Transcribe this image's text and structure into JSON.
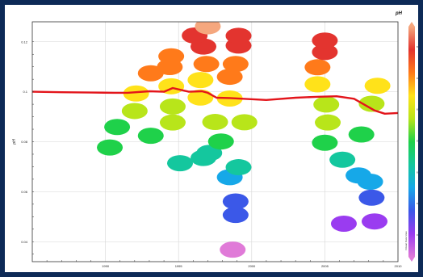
{
  "chart_data": {
    "type": "scatter",
    "title": "",
    "xlabel": "",
    "ylabel": "pH",
    "xlim": [
      1985,
      2010
    ],
    "ylim": [
      0.032,
      0.128
    ],
    "x_ticks": [
      "1990",
      "1995",
      "2000",
      "2005",
      "2010"
    ],
    "y_ticks": [
      "0.12",
      "0.1",
      "0.08",
      "0.06",
      "0.04"
    ],
    "grid": true,
    "colorbar": {
      "label": "pH",
      "ticks": [
        "8.",
        "8.",
        "8.",
        "8.",
        "8.",
        "8.",
        "8."
      ],
      "side_text": "Ocean Data View",
      "colors": [
        "#f5a77e",
        "#e3342f",
        "#ff7a1a",
        "#ffe21a",
        "#b8e51a",
        "#1fd14a",
        "#14c79e",
        "#16a8e8",
        "#3b58e8",
        "#9a3cf0",
        "#e07ad8"
      ]
    },
    "series": [
      {
        "values": [
          {
            "x": 1997.0,
            "y": 0.1262
          },
          {
            "x": 1996.1,
            "y": 0.1225
          },
          {
            "x": 1999.1,
            "y": 0.1224
          },
          {
            "x": 1994.5,
            "y": 0.1142
          },
          {
            "x": 1996.7,
            "y": 0.1181
          },
          {
            "x": 1999.1,
            "y": 0.1185
          },
          {
            "x": 1994.4,
            "y": 0.1099
          },
          {
            "x": 1996.9,
            "y": 0.1111
          },
          {
            "x": 1998.9,
            "y": 0.1111
          },
          {
            "x": 1994.5,
            "y": 0.1022
          },
          {
            "x": 1996.5,
            "y": 0.1047
          },
          {
            "x": 1998.5,
            "y": 0.106
          },
          {
            "x": 1994.6,
            "y": 0.0941
          },
          {
            "x": 1996.5,
            "y": 0.0977
          },
          {
            "x": 1998.5,
            "y": 0.0973
          },
          {
            "x": 1994.6,
            "y": 0.0877
          },
          {
            "x": 1997.5,
            "y": 0.0879
          },
          {
            "x": 1999.5,
            "y": 0.0878
          },
          {
            "x": 1993.1,
            "y": 0.0824
          },
          {
            "x": 1997.9,
            "y": 0.0801
          },
          {
            "x": 1997.1,
            "y": 0.0755
          },
          {
            "x": 1996.7,
            "y": 0.0735
          },
          {
            "x": 1999.1,
            "y": 0.0698
          },
          {
            "x": 1998.5,
            "y": 0.0658
          },
          {
            "x": 1998.9,
            "y": 0.0561
          },
          {
            "x": 1998.9,
            "y": 0.0507
          },
          {
            "x": 1998.7,
            "y": 0.0368
          },
          {
            "x": 2005.0,
            "y": 0.1205
          },
          {
            "x": 2005.0,
            "y": 0.1159
          },
          {
            "x": 2004.5,
            "y": 0.1098
          },
          {
            "x": 2004.5,
            "y": 0.103
          },
          {
            "x": 2005.1,
            "y": 0.0949
          },
          {
            "x": 2005.2,
            "y": 0.0877
          },
          {
            "x": 2005.0,
            "y": 0.0796
          },
          {
            "x": 2007.5,
            "y": 0.0829
          },
          {
            "x": 2006.2,
            "y": 0.0728
          },
          {
            "x": 2007.3,
            "y": 0.0665
          },
          {
            "x": 2008.1,
            "y": 0.064
          },
          {
            "x": 2008.2,
            "y": 0.0576
          },
          {
            "x": 2006.3,
            "y": 0.0472
          },
          {
            "x": 2008.4,
            "y": 0.0481
          },
          {
            "x": 2008.6,
            "y": 0.1024
          },
          {
            "x": 2008.2,
            "y": 0.0952
          },
          {
            "x": 1990.3,
            "y": 0.0777
          },
          {
            "x": 1990.8,
            "y": 0.0859
          },
          {
            "x": 1992.0,
            "y": 0.0923
          },
          {
            "x": 1992.1,
            "y": 0.0993
          },
          {
            "x": 1995.1,
            "y": 0.0714
          },
          {
            "x": 1993.1,
            "y": 0.1074
          }
        ]
      },
      {
        "type": "line",
        "x": [
          1985.0,
          1987.0,
          1989.0,
          1990.6,
          1991.5,
          1993.0,
          1994.0,
          1994.6,
          1995.7,
          1996.6,
          1997.0,
          1997.6,
          1998.5,
          2001.0,
          2003.0,
          2004.6,
          2005.8,
          2007.0,
          2008.4,
          2009.1,
          2010.0
        ],
        "y": [
          0.1,
          0.0998,
          0.0997,
          0.0996,
          0.0996,
          0.1002,
          0.1,
          0.1015,
          0.1,
          0.1002,
          0.0996,
          0.0976,
          0.0975,
          0.0967,
          0.0976,
          0.098,
          0.0982,
          0.0972,
          0.0925,
          0.0912,
          0.0915
        ]
      }
    ]
  }
}
